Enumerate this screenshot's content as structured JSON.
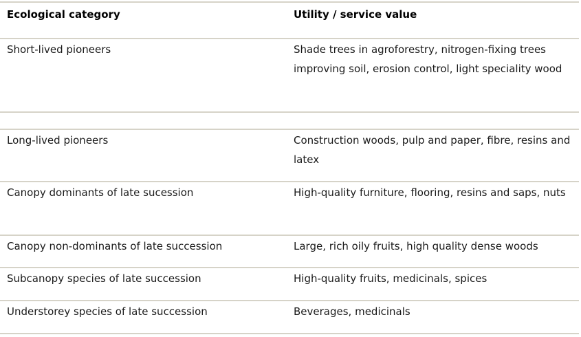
{
  "table": {
    "headers": {
      "category": "Ecological category",
      "value": "Utility / service value"
    },
    "rows": [
      {
        "category": "Short-lived pioneers",
        "value": "Shade trees in agroforestry, nitrogen-fixing trees improving soil, erosion control, light speciality wood"
      },
      {
        "category": "",
        "value": ""
      },
      {
        "category": "Long-lived pioneers",
        "value": "Construction woods, pulp and paper, fibre, resins and latex"
      },
      {
        "category": "Canopy dominants of late sucession",
        "value": "High-quality furniture, flooring, resins and saps, nuts"
      },
      {
        "category": "Canopy non-dominants of late succession",
        "value": "Large, rich oily fruits, high quality dense woods"
      },
      {
        "category": "Subcanopy species of late succession",
        "value": "High-quality fruits, medicinals, spices"
      },
      {
        "category": "Understorey species of late succession",
        "value": "Beverages, medicinals"
      }
    ]
  },
  "colors": {
    "rule_line": "#d6d3c8",
    "body_text": "#1a1a1a",
    "header_text": "#000000",
    "background": "#ffffff"
  }
}
